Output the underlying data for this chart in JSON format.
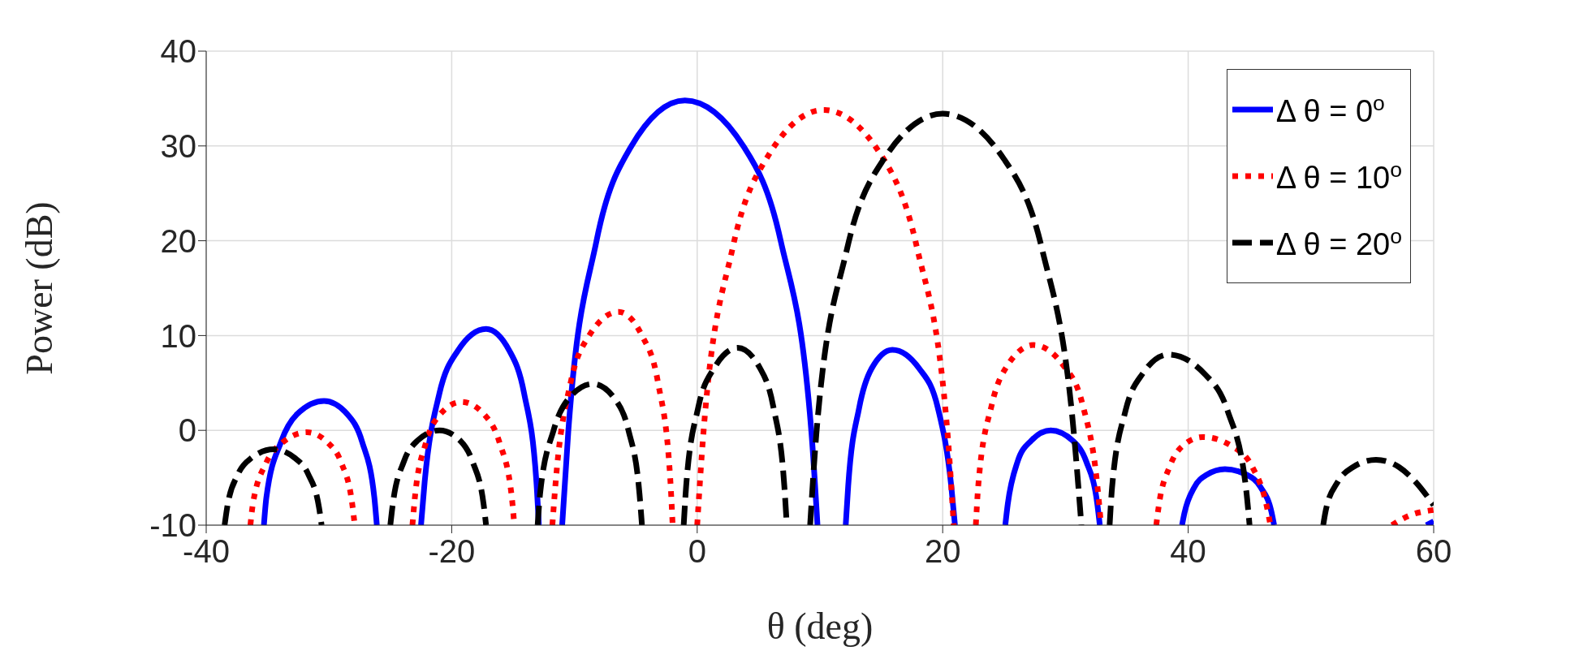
{
  "chart_data": {
    "type": "line",
    "xlabel": "θ (deg)",
    "ylabel": "Power (dB)",
    "xlim": [
      -40,
      60
    ],
    "xticks": [
      -40,
      -20,
      0,
      20,
      40,
      60
    ],
    "ylim": [
      -10,
      40
    ],
    "yticks": [
      -10,
      0,
      10,
      20,
      30,
      40
    ],
    "grid": true,
    "legend": "top right",
    "series": [
      {
        "name": "Δ θ = 0$^{o}$",
        "color": "#0000ff",
        "line_style": "solid",
        "x": [
          -35.3,
          -35.1,
          -33.9,
          -32.6,
          -30.4,
          -28.5,
          -27.3,
          -26.3,
          -26.1,
          -24.3,
          -22.5,
          -22.2,
          -21.0,
          -19.5,
          -17.2,
          -15.3,
          -14.1,
          -13.1,
          -12.9,
          -12.0,
          -11.0,
          -10.5,
          -8.2,
          -5.4,
          -1.0,
          3.8,
          6.8,
          9.3,
          9.8,
          11.0,
          12.1,
          12.3,
          13.2,
          14.2,
          15.9,
          18.1,
          19.6,
          20.7,
          21.0,
          23.0,
          25.1,
          25.3,
          26.1,
          27.2,
          28.8,
          30.6,
          31.7,
          32.6,
          32.8,
          36.0,
          39.5,
          39.7,
          40.5,
          41.5,
          43.0,
          44.8,
          45.9,
          46.8,
          47.0,
          53.0,
          59.4,
          60.0
        ],
        "values": [
          -10,
          -7.1,
          -1.2,
          1.7,
          3.1,
          1.7,
          -1.2,
          -7.1,
          -10,
          null,
          -10,
          -5.4,
          3.9,
          8.4,
          10.7,
          8.4,
          3.9,
          -5.4,
          -10,
          null,
          -10,
          -0.1,
          20.0,
          29.9,
          34.8,
          29.9,
          20.0,
          -0.1,
          -10,
          null,
          -10,
          -5.9,
          2.4,
          6.5,
          8.5,
          6.5,
          2.4,
          -5.9,
          -10,
          null,
          -10,
          -7.8,
          -3.3,
          -1.1,
          0,
          -1.1,
          -3.3,
          -7.8,
          -10,
          null,
          -10,
          -8.7,
          -6.0,
          -4.7,
          -4.1,
          -4.7,
          -6.0,
          -8.7,
          -10,
          null,
          -10,
          -9.6
        ]
      },
      {
        "name": "Δ θ = 10$^{o}$",
        "color": "#ff0000",
        "line_style": "dotted",
        "x": [
          -36.4,
          -36.2,
          -35.1,
          -33.8,
          -31.8,
          -30.1,
          -29.0,
          -28.1,
          -27.9,
          -25.5,
          -23.2,
          -23.0,
          -22.1,
          -21.0,
          -19.2,
          -17.3,
          -16.1,
          -15.1,
          -14.9,
          -13.3,
          -11.8,
          -11.5,
          -10.3,
          -8.8,
          -6.4,
          -4.5,
          -3.2,
          -2.2,
          -2.0,
          -1.0,
          0.0,
          0.5,
          2.9,
          5.8,
          10.3,
          15.0,
          17.9,
          20.4,
          20.9,
          21.8,
          22.7,
          22.9,
          24.0,
          25.3,
          27.4,
          29.8,
          31.4,
          32.6,
          32.9,
          35.0,
          37.4,
          37.6,
          38.5,
          39.5,
          41.2,
          43.6,
          45.2,
          46.4,
          46.7,
          51.0,
          56.6,
          58.0,
          60.0
        ],
        "values": [
          -10,
          -7.8,
          -3.4,
          -1.3,
          -0.2,
          -1.3,
          -3.4,
          -7.8,
          -10,
          null,
          -10,
          -7.1,
          -1.3,
          1.6,
          3.0,
          1.6,
          -1.3,
          -7.1,
          -10,
          null,
          -10,
          -5.0,
          5.1,
          10.0,
          12.5,
          10.0,
          5.1,
          -5.0,
          -10,
          null,
          -10,
          -0.4,
          19.3,
          29.0,
          33.8,
          29.0,
          19.3,
          -0.4,
          -10,
          null,
          -10,
          -5.8,
          2.7,
          6.9,
          9.0,
          6.9,
          2.7,
          -5.8,
          -10,
          null,
          -10,
          -8.0,
          -3.8,
          -1.7,
          -0.7,
          -1.7,
          -3.8,
          -8.0,
          -10,
          null,
          -10,
          -9.0,
          -8.4
        ]
      },
      {
        "name": "Δ θ = 20$^{o}$",
        "color": "#000000",
        "line_style": "dashed",
        "x": [
          -38.5,
          -38.3,
          -37.4,
          -36.3,
          -34.5,
          -32.8,
          -31.7,
          -30.8,
          -30.6,
          -27.8,
          -25.0,
          -24.8,
          -23.9,
          -22.8,
          -21.0,
          -19.3,
          -18.3,
          -17.4,
          -17.2,
          -15.0,
          -13.0,
          -12.8,
          -11.7,
          -10.5,
          -8.5,
          -6.7,
          -5.6,
          -4.7,
          -4.5,
          -2.8,
          -1.1,
          -0.9,
          0.1,
          1.4,
          3.3,
          5.1,
          6.2,
          7.1,
          7.3,
          8.2,
          9.2,
          9.7,
          12.2,
          15.2,
          20.0,
          25.0,
          28.1,
          30.7,
          31.3,
          32.5,
          33.6,
          33.8,
          34.9,
          36.3,
          38.4,
          41.3,
          43.2,
          44.7,
          45.0,
          48.0,
          51.0,
          51.2,
          52.2,
          53.4,
          55.3,
          57.2,
          58.5,
          60.0
        ],
        "values": [
          -10,
          -8.2,
          -4.6,
          -2.9,
          -2.0,
          -2.9,
          -4.6,
          -8.2,
          -10,
          null,
          -10,
          -7.8,
          -3.3,
          -1.1,
          0,
          -1.1,
          -3.3,
          -7.8,
          -10,
          null,
          -10,
          -6.7,
          0,
          3.3,
          4.9,
          3.3,
          0,
          -6.7,
          -10,
          null,
          -10,
          -5.9,
          2.5,
          6.6,
          8.7,
          6.6,
          2.5,
          -5.9,
          -10,
          null,
          -10,
          -0.5,
          19.1,
          28.6,
          33.4,
          28.6,
          19.1,
          -0.5,
          -10,
          null,
          -10,
          -6.0,
          2.1,
          6.0,
          8.0,
          6.0,
          2.1,
          -6.0,
          -10,
          null,
          -10,
          -8.5,
          -5.4,
          -3.9,
          -3.1,
          -3.9,
          -5.4,
          -7.9
        ]
      }
    ]
  }
}
